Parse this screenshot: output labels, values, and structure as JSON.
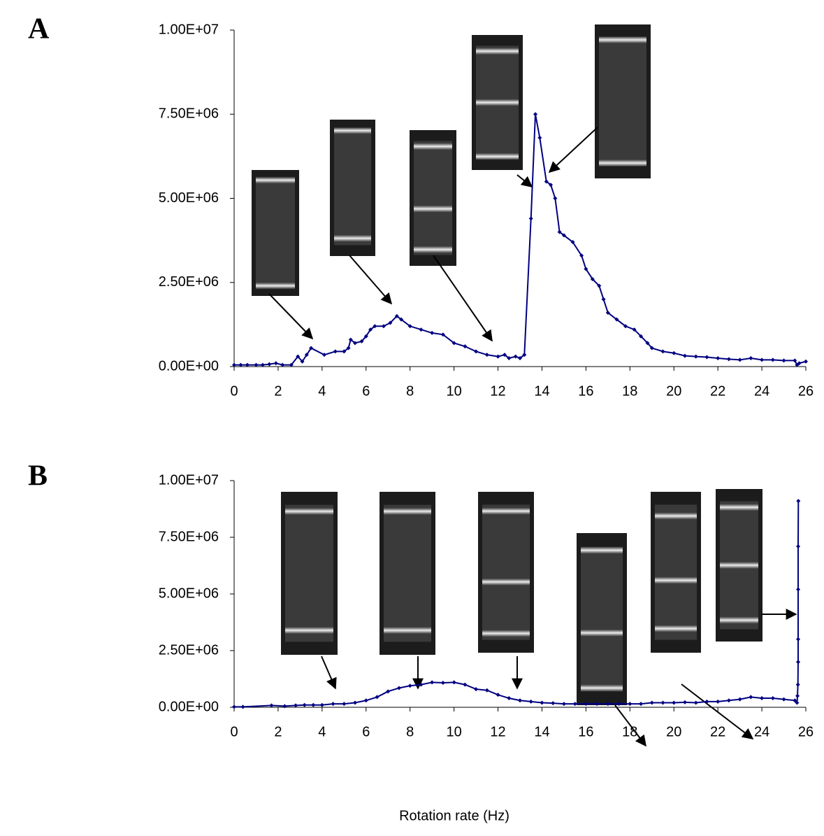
{
  "chart_data": [
    {
      "type": "line",
      "panel_label": "A",
      "color": "#000080",
      "x": [
        0,
        0.3,
        0.6,
        1.0,
        1.3,
        1.6,
        1.9,
        2.2,
        2.6,
        2.9,
        3.1,
        3.3,
        3.5,
        4.1,
        4.6,
        5.0,
        5.2,
        5.3,
        5.5,
        5.8,
        6.0,
        6.2,
        6.4,
        6.8,
        7.1,
        7.4,
        7.6,
        8.0,
        8.5,
        9.0,
        9.5,
        10.0,
        10.5,
        11.0,
        11.5,
        12.0,
        12.3,
        12.5,
        12.8,
        13.0,
        13.2,
        13.5,
        13.7,
        13.9,
        14.2,
        14.4,
        14.6,
        14.8,
        15.0,
        15.4,
        15.8,
        16.0,
        16.3,
        16.6,
        16.8,
        17.0,
        17.4,
        17.8,
        18.2,
        18.5,
        18.8,
        19.0,
        19.5,
        20.0,
        20.5,
        21.0,
        21.5,
        22.0,
        22.5,
        23.0,
        23.5,
        24.0,
        24.5,
        25.0,
        25.5,
        25.6,
        25.7,
        26.0
      ],
      "values": [
        50000,
        50000,
        50000,
        50000,
        50000,
        70000,
        100000,
        50000,
        50000,
        300000,
        150000,
        350000,
        550000,
        350000,
        450000,
        450000,
        550000,
        800000,
        700000,
        750000,
        900000,
        1100000,
        1200000,
        1200000,
        1300000,
        1500000,
        1400000,
        1200000,
        1100000,
        1000000,
        950000,
        700000,
        600000,
        450000,
        350000,
        300000,
        350000,
        250000,
        300000,
        250000,
        350000,
        4400000,
        7500000,
        6800000,
        5500000,
        5400000,
        5000000,
        4000000,
        3900000,
        3700000,
        3300000,
        2900000,
        2600000,
        2400000,
        2000000,
        1600000,
        1400000,
        1200000,
        1100000,
        900000,
        700000,
        550000,
        450000,
        400000,
        320000,
        300000,
        280000,
        250000,
        220000,
        200000,
        250000,
        200000,
        200000,
        180000,
        180000,
        50000,
        100000,
        150000
      ],
      "xlim": [
        0,
        26
      ],
      "xticks": [
        0,
        2,
        4,
        6,
        8,
        10,
        12,
        14,
        16,
        18,
        20,
        22,
        24,
        26
      ],
      "ylim": [
        0,
        10000000
      ],
      "yticks": [
        {
          "value": 0,
          "label": "0.00E+00"
        },
        {
          "value": 2500000,
          "label": "2.50E+06"
        },
        {
          "value": 5000000,
          "label": "5.00E+06"
        },
        {
          "value": 7500000,
          "label": "7.50E+06"
        },
        {
          "value": 10000000,
          "label": "1.00E+07"
        }
      ]
    },
    {
      "type": "line",
      "panel_label": "B",
      "color": "#000080",
      "x_label": "Rotation rate (Hz)",
      "x": [
        0,
        0.4,
        1.7,
        2.3,
        2.8,
        3.2,
        3.6,
        4.0,
        4.5,
        5.0,
        5.5,
        6.0,
        6.5,
        7.0,
        7.5,
        8.0,
        8.5,
        9.0,
        9.5,
        10.0,
        10.5,
        11.0,
        11.5,
        12.0,
        12.5,
        13.0,
        13.5,
        14.0,
        14.5,
        15.0,
        15.5,
        16.0,
        16.5,
        17.0,
        17.5,
        18.0,
        18.5,
        19.0,
        19.5,
        20.0,
        20.5,
        21.0,
        21.5,
        22.0,
        22.5,
        23.0,
        23.5,
        24.0,
        24.5,
        25.0,
        25.5,
        25.6,
        25.62,
        25.64,
        25.65,
        25.65,
        25.65,
        25.65,
        25.66
      ],
      "values": [
        20000,
        20000,
        80000,
        50000,
        80000,
        100000,
        100000,
        100000,
        150000,
        150000,
        200000,
        300000,
        450000,
        700000,
        850000,
        950000,
        1000000,
        1100000,
        1080000,
        1100000,
        1000000,
        800000,
        750000,
        550000,
        400000,
        300000,
        250000,
        200000,
        180000,
        150000,
        150000,
        150000,
        150000,
        150000,
        150000,
        150000,
        150000,
        200000,
        200000,
        200000,
        220000,
        200000,
        250000,
        250000,
        300000,
        350000,
        450000,
        400000,
        400000,
        350000,
        300000,
        200000,
        500000,
        1000000,
        2000000,
        3000000,
        5200000,
        7100000,
        9100000
      ],
      "xlim": [
        0,
        26
      ],
      "xticks": [
        0,
        2,
        4,
        6,
        8,
        10,
        12,
        14,
        16,
        18,
        20,
        22,
        24,
        26
      ],
      "ylim": [
        0,
        10000000
      ],
      "yticks": [
        {
          "value": 0,
          "label": "0.00E+00"
        },
        {
          "value": 2500000,
          "label": "2.50E+06"
        },
        {
          "value": 5000000,
          "label": "5.00E+06"
        },
        {
          "value": 7500000,
          "label": "7.50E+06"
        },
        {
          "value": 10000000,
          "label": "1.00E+07"
        }
      ]
    }
  ]
}
